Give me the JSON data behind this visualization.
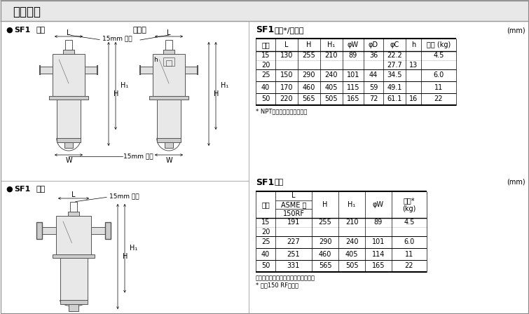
{
  "title": "外形尺寸",
  "bg_color": "#ffffff",
  "table1_title_bold": "SF1",
  "table1_title_light": "螺纹*/承插焊",
  "table1_unit": "(mm)",
  "table1_headers": [
    "口径",
    "L",
    "H",
    "H₁",
    "φW",
    "φD",
    "φC",
    "h",
    "重量 (kg)"
  ],
  "table1_rows": [
    [
      "15",
      "130",
      "255",
      "210",
      "89",
      "36",
      "22.2",
      "",
      "4.5"
    ],
    [
      "20",
      "",
      "",
      "",
      "",
      "",
      "27.7",
      "13",
      ""
    ],
    [
      "25",
      "150",
      "290",
      "240",
      "101",
      "44",
      "34.5",
      "",
      "6.0"
    ],
    [
      "40",
      "170",
      "460",
      "405",
      "115",
      "59",
      "49.1",
      "",
      "11"
    ],
    [
      "50",
      "220",
      "565",
      "505",
      "165",
      "72",
      "61.1",
      "16",
      "22"
    ]
  ],
  "table1_note": "* NPT标准，也承做其它标准",
  "table2_title_bold": "SF1",
  "table2_title_light": "法兰",
  "table2_unit": "(mm)",
  "table2_rows": [
    [
      "15",
      "191",
      "255",
      "210",
      "89",
      "4.5"
    ],
    [
      "20",
      "",
      "",
      "",
      "",
      ""
    ],
    [
      "25",
      "227",
      "290",
      "240",
      "101",
      "6.0"
    ],
    [
      "40",
      "251",
      "460",
      "405",
      "114",
      "11"
    ],
    [
      "50",
      "331",
      "565",
      "505",
      "165",
      "22"
    ]
  ],
  "table2_note1": "也承做其它标准，长度和重量可能不同",
  "table2_note2": "* 对应150 RF的重量",
  "label_sf1_screw": "SF1",
  "label_screw": "螺纹",
  "label_sockweld": "承插焊",
  "label_sf1_flange": "SF1",
  "label_flange": "法兰",
  "label_15mm": "15mm 螺纹",
  "label_L": "L",
  "label_H": "H",
  "label_H1": "H₁",
  "label_W": "W",
  "label_h": "h"
}
